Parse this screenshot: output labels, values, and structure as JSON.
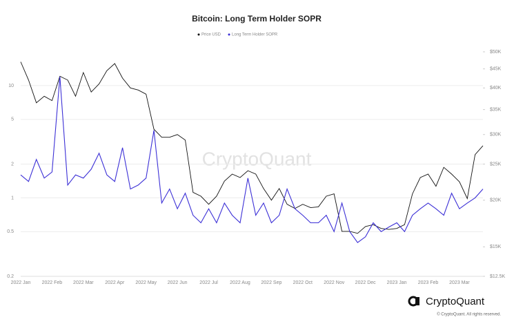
{
  "chart_data": {
    "type": "line",
    "title": "Bitcoin: Long Term Holder SOPR",
    "watermark": "CryptoQuant",
    "brand": "CryptoQuant",
    "copyright": "© CryptoQuant. All rights reserved.",
    "categories": [
      "2022 Jan",
      null,
      null,
      null,
      "2022 Feb",
      null,
      null,
      null,
      "2022 Mar",
      null,
      null,
      null,
      "2022 Apr",
      null,
      null,
      null,
      "2022 May",
      null,
      null,
      null,
      "2022 Jun",
      null,
      null,
      null,
      "2022 Jul",
      null,
      null,
      null,
      "2022 Aug",
      null,
      null,
      null,
      "2022 Sep",
      null,
      null,
      null,
      "2022 Oct",
      null,
      null,
      null,
      "2022 Nov",
      null,
      null,
      null,
      "2022 Dec",
      null,
      null,
      null,
      "2023 Jan",
      null,
      null,
      null,
      "2023 Feb",
      null,
      null,
      null,
      "2023 Mar",
      null,
      null,
      null
    ],
    "series": [
      {
        "name": "Price USD",
        "color": "#111111",
        "axis": "y2",
        "values": [
          47000,
          42000,
          36500,
          38000,
          37000,
          43000,
          42000,
          38000,
          44000,
          39000,
          41000,
          44500,
          46500,
          42500,
          40000,
          39500,
          38500,
          31000,
          29500,
          29500,
          30000,
          29000,
          21000,
          20500,
          19500,
          20500,
          22500,
          23500,
          23000,
          24000,
          23500,
          21500,
          20000,
          21500,
          19500,
          19000,
          19500,
          19100,
          19200,
          20500,
          20800,
          16500,
          16500,
          16300,
          17000,
          17200,
          16800,
          16700,
          16800,
          17200,
          20800,
          23000,
          23500,
          21800,
          24500,
          23500,
          22400,
          20200,
          26500,
          28000
        ]
      },
      {
        "name": "Long Term Holder SOPR",
        "color": "#3b2fd6",
        "axis": "y",
        "values": [
          1.6,
          1.4,
          2.2,
          1.5,
          1.7,
          12,
          1.3,
          1.6,
          1.5,
          1.8,
          2.5,
          1.6,
          1.4,
          2.8,
          1.2,
          1.3,
          1.5,
          4,
          0.9,
          1.2,
          0.8,
          1.1,
          0.7,
          0.6,
          0.8,
          0.6,
          0.9,
          0.7,
          0.6,
          1.5,
          0.7,
          0.9,
          0.6,
          0.7,
          1.2,
          0.8,
          0.7,
          0.6,
          0.6,
          0.7,
          0.5,
          0.9,
          0.5,
          0.4,
          0.45,
          0.6,
          0.5,
          0.55,
          0.6,
          0.5,
          0.7,
          0.8,
          0.9,
          0.8,
          0.7,
          1.1,
          0.8,
          0.9,
          1.0,
          1.2
        ]
      }
    ],
    "ylim": [
      0.2,
      20
    ],
    "yticks": [
      0.2,
      0.5,
      1,
      2,
      5,
      10
    ],
    "log_y": true,
    "y2lim": [
      12500,
      50000
    ],
    "y2ticks": [
      {
        "value": 12500,
        "label": "$12.5K"
      },
      {
        "value": 15000,
        "label": "$15K"
      },
      {
        "value": 20000,
        "label": "$20K"
      },
      {
        "value": 25000,
        "label": "$25K"
      },
      {
        "value": 30000,
        "label": "$30K"
      },
      {
        "value": 35000,
        "label": "$35K"
      },
      {
        "value": 40000,
        "label": "$40K"
      },
      {
        "value": 45000,
        "label": "$45K"
      },
      {
        "value": 50000,
        "label": "$50K"
      }
    ],
    "log_y2": true,
    "grid": true,
    "legend": "top"
  }
}
